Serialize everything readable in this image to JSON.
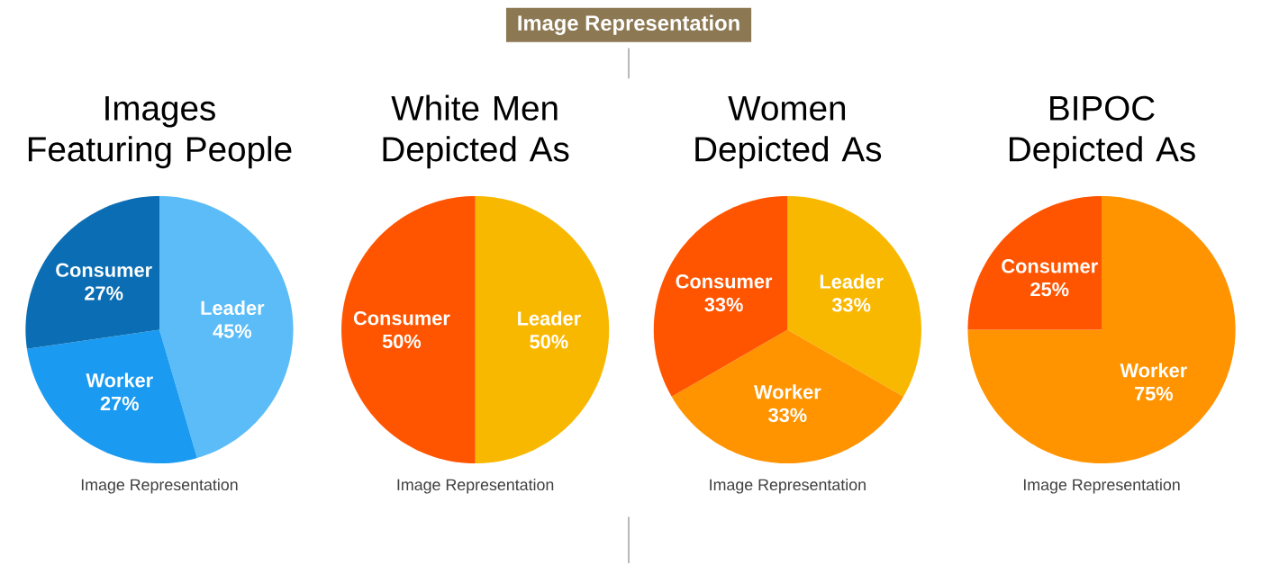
{
  "chart_data": [
    {
      "type": "other",
      "title": "Image Representation"
    },
    {
      "type": "pie",
      "title": "Images Featuring People",
      "categories": [
        "Leader",
        "Worker",
        "Consumer"
      ],
      "values": [
        45,
        27,
        27
      ],
      "value_labels": [
        "45%",
        "27%",
        "27%"
      ],
      "colors": [
        "#5bbcf7",
        "#1a9af0",
        "#0b6db3"
      ],
      "annotations": [
        "Image Representation"
      ]
    },
    {
      "type": "pie",
      "title": "White Men Depicted As",
      "categories": [
        "Leader",
        "Consumer"
      ],
      "values": [
        50,
        50
      ],
      "value_labels": [
        "50%",
        "50%"
      ],
      "colors": [
        "#f9b800",
        "#ff5500"
      ],
      "annotations": [
        "Image Representation"
      ]
    },
    {
      "type": "pie",
      "title": "Women Depicted As",
      "categories": [
        "Leader",
        "Worker",
        "Consumer"
      ],
      "values": [
        33,
        33,
        33
      ],
      "value_labels": [
        "33%",
        "33%",
        "33%"
      ],
      "colors": [
        "#f9b800",
        "#ff9400",
        "#ff5500"
      ],
      "annotations": [
        "Image Representation"
      ]
    },
    {
      "type": "pie",
      "title": "BIPOC Depicted As",
      "categories": [
        "Worker",
        "Consumer"
      ],
      "values": [
        75,
        25
      ],
      "value_labels": [
        "75%",
        "25%"
      ],
      "colors": [
        "#ff9400",
        "#ff5500"
      ],
      "annotations": [
        "Image Representation"
      ]
    }
  ]
}
